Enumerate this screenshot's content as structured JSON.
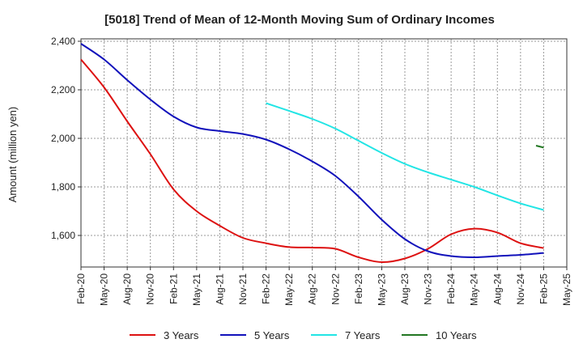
{
  "chart_data": {
    "type": "line",
    "title": "[5018]  Trend of Mean of 12-Month Moving Sum of Ordinary Incomes",
    "xlabel": "",
    "ylabel": "Amount (million yen)",
    "ylim": [
      1470,
      2410
    ],
    "yticks": [
      1600,
      1800,
      2000,
      2200,
      2400
    ],
    "ytick_labels": [
      "1,600",
      "1,800",
      "2,000",
      "2,200",
      "2,400"
    ],
    "grid": true,
    "legend_position": "bottom",
    "x_tick_labels": [
      "Feb-20",
      "May-20",
      "Aug-20",
      "Nov-20",
      "Feb-21",
      "May-21",
      "Aug-21",
      "Nov-21",
      "Feb-22",
      "May-22",
      "Aug-22",
      "Nov-22",
      "Feb-23",
      "May-23",
      "Aug-23",
      "Nov-23",
      "Feb-24",
      "May-24",
      "Aug-24",
      "Nov-24",
      "Feb-25",
      "May-25"
    ],
    "series": [
      {
        "name": "3 Years",
        "color": "#dd1111",
        "points": [
          [
            0,
            2325
          ],
          [
            1,
            2210
          ],
          [
            2,
            2070
          ],
          [
            3,
            1935
          ],
          [
            4,
            1790
          ],
          [
            5,
            1700
          ],
          [
            6,
            1640
          ],
          [
            7,
            1590
          ],
          [
            8,
            1568
          ],
          [
            9,
            1552
          ],
          [
            10,
            1550
          ],
          [
            11,
            1545
          ],
          [
            12,
            1510
          ],
          [
            13,
            1490
          ],
          [
            14,
            1505
          ],
          [
            15,
            1545
          ],
          [
            16,
            1605
          ],
          [
            17,
            1628
          ],
          [
            18,
            1612
          ],
          [
            19,
            1568
          ],
          [
            20,
            1548
          ]
        ]
      },
      {
        "name": "5 Years",
        "color": "#1111bb",
        "points": [
          [
            0,
            2390
          ],
          [
            1,
            2325
          ],
          [
            2,
            2240
          ],
          [
            3,
            2160
          ],
          [
            4,
            2090
          ],
          [
            5,
            2045
          ],
          [
            6,
            2030
          ],
          [
            7,
            2018
          ],
          [
            8,
            1995
          ],
          [
            9,
            1955
          ],
          [
            10,
            1905
          ],
          [
            11,
            1845
          ],
          [
            12,
            1760
          ],
          [
            13,
            1665
          ],
          [
            14,
            1585
          ],
          [
            15,
            1535
          ],
          [
            16,
            1515
          ],
          [
            17,
            1510
          ],
          [
            18,
            1515
          ],
          [
            19,
            1520
          ],
          [
            20,
            1528
          ]
        ]
      },
      {
        "name": "7 Years",
        "color": "#22e5e5",
        "points": [
          [
            8,
            2145
          ],
          [
            9,
            2113
          ],
          [
            10,
            2080
          ],
          [
            11,
            2040
          ],
          [
            12,
            1990
          ],
          [
            13,
            1940
          ],
          [
            14,
            1895
          ],
          [
            15,
            1860
          ],
          [
            16,
            1830
          ],
          [
            17,
            1800
          ],
          [
            18,
            1765
          ],
          [
            19,
            1732
          ],
          [
            20,
            1705
          ]
        ]
      },
      {
        "name": "10 Years",
        "color": "#227722",
        "points": [
          [
            19.67,
            1970
          ],
          [
            20,
            1962
          ]
        ]
      }
    ]
  }
}
